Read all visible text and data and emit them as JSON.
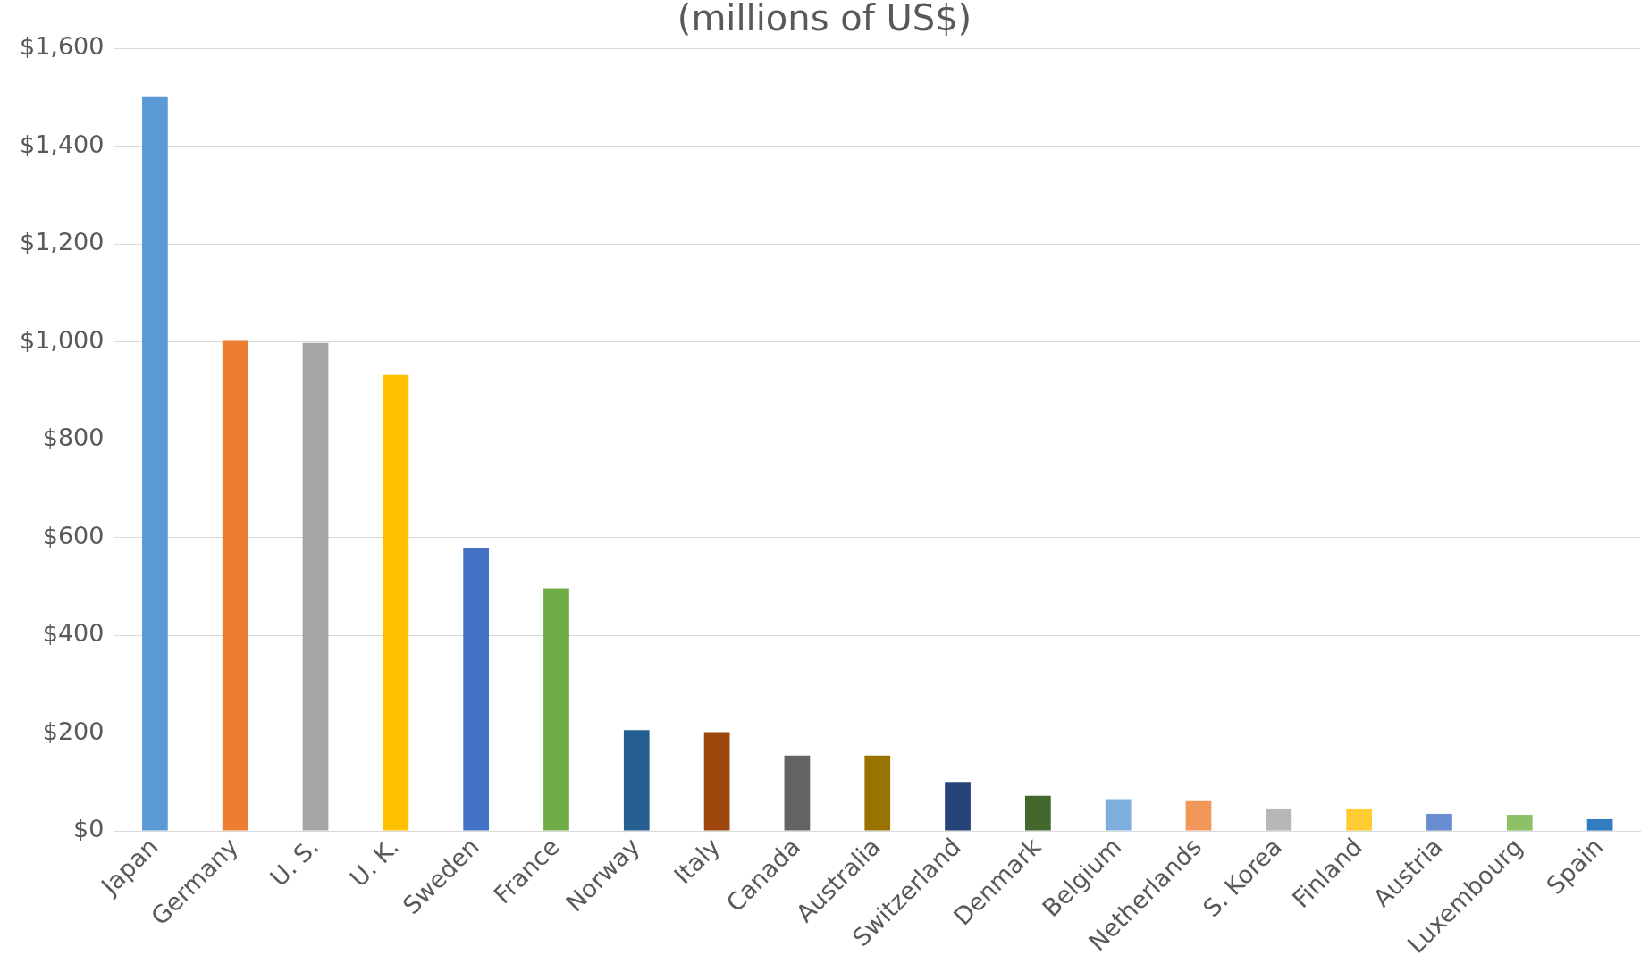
{
  "chart_data": {
    "type": "bar",
    "title": "(millions of US$)",
    "categories": [
      "Japan",
      "Germany",
      "U. S.",
      "U. K.",
      "Sweden",
      "France",
      "Norway",
      "Italy",
      "Canada",
      "Australia",
      "Switzerland",
      "Denmark",
      "Belgium",
      "Netherlands",
      "S. Korea",
      "Finland",
      "Austria",
      "Luxembourg",
      "Spain"
    ],
    "values": [
      1500,
      1002,
      998,
      932,
      579,
      496,
      206,
      202,
      154,
      154,
      100,
      72,
      65,
      61,
      46,
      46,
      35,
      33,
      24
    ],
    "colors": [
      "#5b9bd5",
      "#ed7d31",
      "#a5a5a5",
      "#ffc000",
      "#4472c4",
      "#70ad47",
      "#255e91",
      "#9e480e",
      "#636363",
      "#997300",
      "#264478",
      "#43682b",
      "#7cafdd",
      "#f1975a",
      "#b7b7b7",
      "#ffcd33",
      "#698ed0",
      "#8cc168",
      "#327dc2"
    ],
    "ylim": [
      0,
      1600
    ],
    "yticks": [
      {
        "value": 0,
        "label": "$0"
      },
      {
        "value": 200,
        "label": "$200"
      },
      {
        "value": 400,
        "label": "$400"
      },
      {
        "value": 600,
        "label": "$600"
      },
      {
        "value": 800,
        "label": "$800"
      },
      {
        "value": 1000,
        "label": "$1,000"
      },
      {
        "value": 1200,
        "label": "$1,200"
      },
      {
        "value": 1400,
        "label": "$1,400"
      },
      {
        "value": 1600,
        "label": "$1,600"
      }
    ],
    "grid": "y",
    "legend": false
  }
}
